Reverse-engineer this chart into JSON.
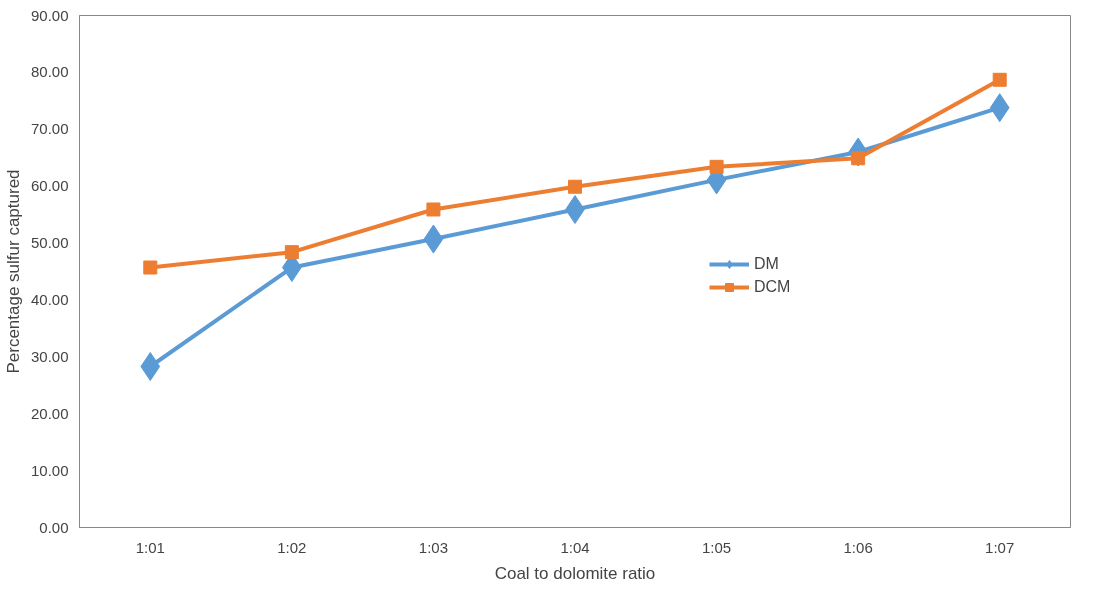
{
  "chart_data": {
    "type": "line",
    "xlabel": "Coal to dolomite ratio",
    "ylabel": "Percentage sulfur captured",
    "categories": [
      "1:01",
      "1:02",
      "1:03",
      "1:04",
      "1:05",
      "1:06",
      "1:07"
    ],
    "ylim": [
      0,
      90
    ],
    "yticks": [
      {
        "value": 0,
        "label": "0.00"
      },
      {
        "value": 10,
        "label": "10.00"
      },
      {
        "value": 20,
        "label": "20.00"
      },
      {
        "value": 30,
        "label": "30.00"
      },
      {
        "value": 40,
        "label": "40.00"
      },
      {
        "value": 50,
        "label": "50.00"
      },
      {
        "value": 60,
        "label": "60.00"
      },
      {
        "value": 70,
        "label": "70.00"
      },
      {
        "value": 80,
        "label": "80.00"
      },
      {
        "value": 90,
        "label": "90.00"
      }
    ],
    "grid": false,
    "legend": "right",
    "line_style": "solid",
    "series": [
      {
        "name": "DM",
        "color": "#5b9bd5",
        "marker": "diamond",
        "values": [
          28.3,
          45.7,
          50.7,
          55.9,
          61.1,
          66.0,
          73.8
        ]
      },
      {
        "name": "DCM",
        "color": "#ed7d31",
        "marker": "square",
        "values": [
          45.7,
          48.4,
          55.9,
          59.9,
          63.4,
          64.9,
          78.7
        ]
      }
    ]
  }
}
